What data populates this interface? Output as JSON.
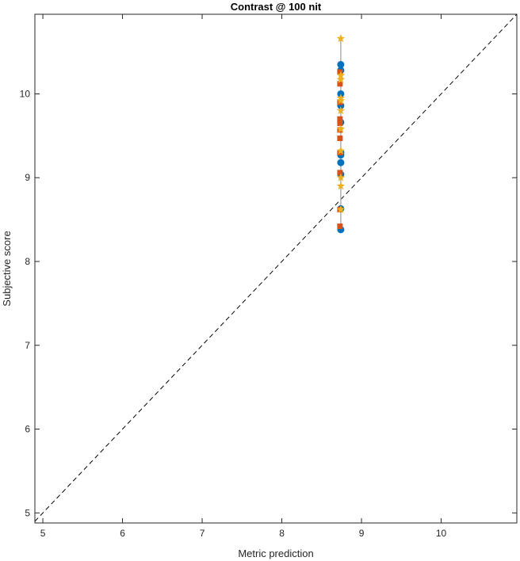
{
  "chart_data": {
    "type": "scatter",
    "title": "Contrast @ 100 nit",
    "xlabel": "Metric prediction",
    "ylabel": "Subjective score",
    "xlim": [
      4.9,
      10.95
    ],
    "ylim": [
      4.88,
      10.95
    ],
    "xticks": [
      5,
      6,
      7,
      8,
      9,
      10
    ],
    "yticks": [
      5,
      6,
      7,
      8,
      9,
      10
    ],
    "grid": false,
    "legend": "none",
    "reference_line": {
      "x": [
        4.9,
        10.95
      ],
      "y": [
        4.9,
        10.95
      ],
      "style": "dashed",
      "color": "#000000"
    },
    "error_bar": {
      "x": 8.74,
      "y_low": 8.38,
      "y_high": 10.66,
      "color": "#b0b0b0"
    },
    "series": [
      {
        "marker": "circle",
        "color": "#0072BD",
        "x": [
          8.74,
          8.74,
          8.74,
          8.74,
          8.74,
          8.74,
          8.74,
          8.74,
          8.74,
          8.74,
          8.74
        ],
        "y": [
          10.35,
          10.28,
          10.0,
          9.86,
          9.66,
          9.3,
          9.27,
          9.18,
          9.04,
          8.63,
          8.38
        ]
      },
      {
        "marker": "square",
        "color": "#D95319",
        "x": [
          8.73,
          8.73,
          8.73,
          8.73,
          8.73,
          8.73,
          8.73,
          8.73,
          8.73,
          8.73,
          8.73
        ],
        "y": [
          10.26,
          10.12,
          9.9,
          9.7,
          9.65,
          9.57,
          9.47,
          9.3,
          9.06,
          8.62,
          8.42
        ]
      },
      {
        "marker": "star",
        "color": "#EDB120",
        "x": [
          8.74,
          8.74,
          8.74,
          8.74,
          8.74,
          8.74,
          8.74,
          8.74,
          8.74,
          8.74,
          8.74
        ],
        "y": [
          10.66,
          10.22,
          10.17,
          9.95,
          9.92,
          9.8,
          9.58,
          9.32,
          9.0,
          8.9,
          8.62
        ]
      }
    ]
  }
}
